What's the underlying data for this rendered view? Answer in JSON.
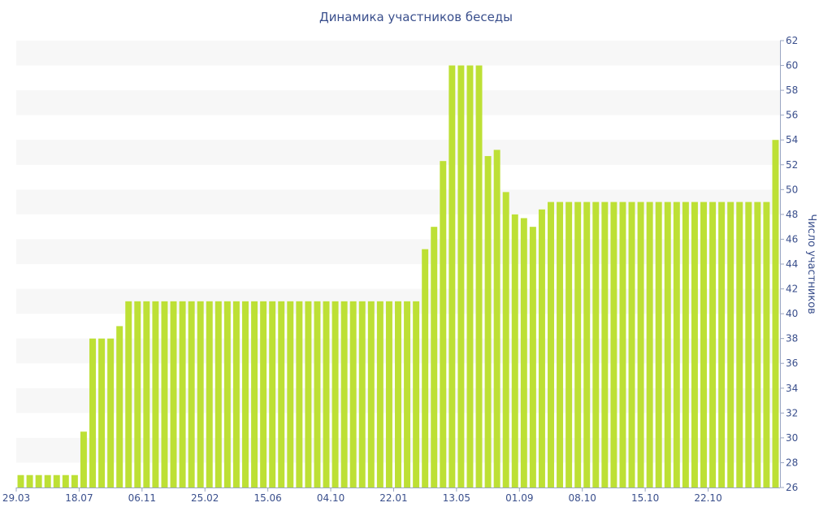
{
  "chart_data": {
    "type": "bar",
    "title": "Динамика участников беседы",
    "ylabel": "Число участников",
    "xlabel": "",
    "ylim": [
      26,
      62
    ],
    "y_ticks": [
      26,
      28,
      30,
      32,
      34,
      36,
      38,
      40,
      42,
      44,
      46,
      48,
      50,
      52,
      54,
      56,
      58,
      60,
      62
    ],
    "y_axis_position": "right",
    "x_tick_labels": [
      {
        "label": "29.03",
        "index": 0
      },
      {
        "label": "18.07",
        "index": 7
      },
      {
        "label": "06.11",
        "index": 14
      },
      {
        "label": "25.02",
        "index": 21
      },
      {
        "label": "15.06",
        "index": 28
      },
      {
        "label": "04.10",
        "index": 35
      },
      {
        "label": "22.01",
        "index": 42
      },
      {
        "label": "13.05",
        "index": 49
      },
      {
        "label": "01.09",
        "index": 56
      },
      {
        "label": "08.10",
        "index": 63
      },
      {
        "label": "15.10",
        "index": 70
      },
      {
        "label": "22.10",
        "index": 77
      }
    ],
    "values": [
      27,
      27,
      27,
      27,
      27,
      27,
      27,
      30.5,
      38,
      38,
      38,
      39,
      41,
      41,
      41,
      41,
      41,
      41,
      41,
      41,
      41,
      41,
      41,
      41,
      41,
      41,
      41,
      41,
      41,
      41,
      41,
      41,
      41,
      41,
      41,
      41,
      41,
      41,
      41,
      41,
      41,
      41,
      41,
      41,
      41,
      45.2,
      47,
      52.3,
      60,
      60,
      60,
      60,
      52.7,
      53.2,
      49.8,
      48,
      47.7,
      47,
      48.4,
      49,
      49,
      49,
      49,
      49,
      49,
      49,
      49,
      49,
      49,
      49,
      49,
      49,
      49,
      49,
      49,
      49,
      49,
      49,
      49,
      49,
      49,
      49,
      49,
      49,
      54
    ],
    "bar_color": "#bde035",
    "band_color": "#f7f7f7",
    "text_color": "#3a4f8c",
    "axis_color": "#9aa6c2",
    "grid": true,
    "legend": false
  }
}
